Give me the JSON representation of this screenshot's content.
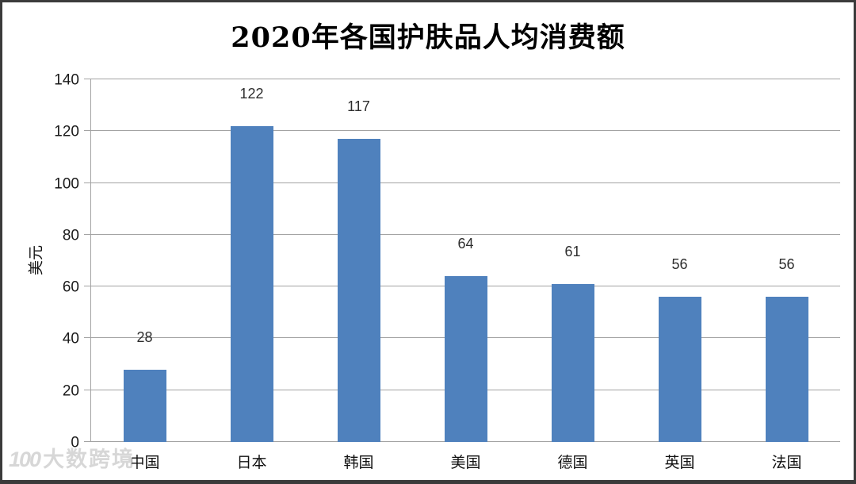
{
  "title": "2020年各国护肤品人均消费额",
  "watermark": {
    "logo": "100",
    "text": "大数跨境"
  },
  "chart_data": {
    "type": "bar",
    "title": "2020年各国护肤品人均消费额",
    "categories": [
      "中国",
      "日本",
      "韩国",
      "美国",
      "德国",
      "英国",
      "法国"
    ],
    "values": [
      28,
      122,
      117,
      64,
      61,
      56,
      56
    ],
    "xlabel": "",
    "ylabel": "美元",
    "ylim": [
      0,
      140
    ],
    "yticks": [
      0,
      20,
      40,
      60,
      80,
      100,
      120,
      140
    ],
    "grid": true,
    "legend_position": "none",
    "bar_color": "#4f81bd",
    "gridline_color": "#a3a3a3",
    "axis_color": "#a3a3a3",
    "value_label_color": "#2e2e2e",
    "tick_label_color": "#1a1a1a"
  }
}
